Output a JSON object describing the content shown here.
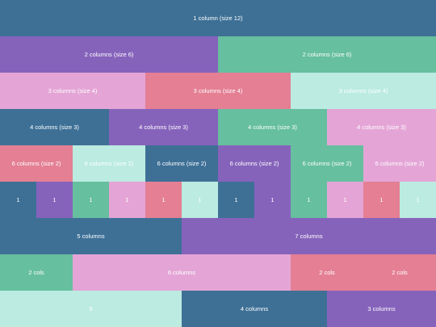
{
  "colors": {
    "blue": "#3e7096",
    "purple": "#8663bb",
    "green": "#66bf9e",
    "pink": "#e4a5d6",
    "rose": "#e47f94",
    "mint": "#bbebe1",
    "text": "#ffffff"
  },
  "rows": [
    {
      "cells": [
        {
          "label": "1 column (size 12)"
        }
      ]
    },
    {
      "cells": [
        {
          "label": "2 columns (size 6)"
        },
        {
          "label": "2 columns (size 6)"
        }
      ]
    },
    {
      "cells": [
        {
          "label": "3 columns (size 4)"
        },
        {
          "label": "3 columns (size 4)"
        },
        {
          "label": "3 columns (size 4)"
        }
      ]
    },
    {
      "cells": [
        {
          "label": "4 columns (size 3)"
        },
        {
          "label": "4 columns (size 3)"
        },
        {
          "label": "4 columns (size 3)"
        },
        {
          "label": "4 columns (size 3)"
        }
      ]
    },
    {
      "cells": [
        {
          "label": "6 columns (size 2)"
        },
        {
          "label": "6 columns (size 2)"
        },
        {
          "label": "6 columns (size 2)"
        },
        {
          "label": "6 columns (size 2)"
        },
        {
          "label": "6 columns (size 2)"
        },
        {
          "label": "6 columns (size 2)"
        }
      ]
    },
    {
      "cells": [
        {
          "label": "1"
        },
        {
          "label": "1"
        },
        {
          "label": "1"
        },
        {
          "label": "1"
        },
        {
          "label": "1"
        },
        {
          "label": "1"
        },
        {
          "label": "1"
        },
        {
          "label": "1"
        },
        {
          "label": "1"
        },
        {
          "label": "1"
        },
        {
          "label": "1"
        },
        {
          "label": "1"
        }
      ]
    },
    {
      "cells": [
        {
          "label": "5 columns"
        },
        {
          "label": "7 columns"
        }
      ]
    },
    {
      "cells": [
        {
          "label": "2 cols"
        },
        {
          "label": "6 columns"
        },
        {
          "label": "2 cols"
        },
        {
          "label": "2 cols"
        }
      ]
    },
    {
      "cells": [
        {
          "label": "5"
        },
        {
          "label": "4 columns"
        },
        {
          "label": "3 columns"
        }
      ]
    }
  ]
}
